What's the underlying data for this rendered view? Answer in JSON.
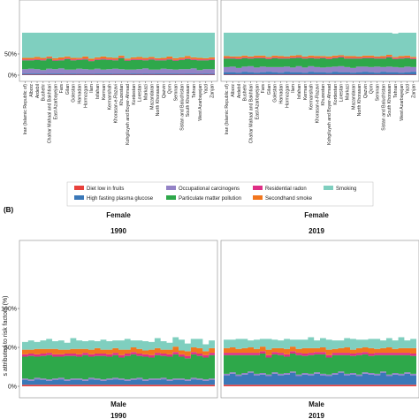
{
  "chart_data": {
    "type": "area",
    "section_label": "(B)",
    "y_label": "s attributed to risk factors (%)",
    "y_ticks_top": [
      "0%",
      "50%"
    ],
    "y_ticks_bottom": [
      "0%",
      "50%",
      "100%"
    ],
    "provinces": [
      "Iran (Islamic Republic of)",
      "Alborz",
      "Ardebil",
      "Bushehr",
      "Chahar Mahaal and Bakhtiari",
      "East Azarbayejan",
      "Fars",
      "Gilan",
      "Golestan",
      "Hamadan",
      "Hormozgan",
      "Ilam",
      "Isfahan",
      "Kerman",
      "Kermanshah",
      "Khorasan-e-Razavi",
      "Khuzestan",
      "Kohgiluyeh and Boyer-Ahmad",
      "Kordestan",
      "Lorestan",
      "Markazi",
      "Mazandaran",
      "North Khorasan",
      "Qazvin",
      "Qom",
      "Semnan",
      "Sistan and Baluchistan",
      "South Khorasan",
      "Tehran",
      "West Azarbayejan",
      "Yazd",
      "Zanjan"
    ],
    "risk_factors": [
      {
        "name": "Diet low in fruits",
        "color": "#e8413c"
      },
      {
        "name": "High fasting plasma glucose",
        "color": "#3a78b8"
      },
      {
        "name": "Occupational carcinogens",
        "color": "#9483c6"
      },
      {
        "name": "Particulate matter pollution",
        "color": "#2ea84a"
      },
      {
        "name": "Residential radon",
        "color": "#df2f86"
      },
      {
        "name": "Secondhand smoke",
        "color": "#f2761d"
      },
      {
        "name": "Smoking",
        "color": "#7fcfbf"
      }
    ],
    "panels": [
      {
        "group": "",
        "year": "",
        "x_labels": true,
        "series": {
          "Diet low in fruits": [
            1,
            1,
            1,
            1,
            1,
            1,
            1,
            1,
            1,
            1,
            1,
            1,
            1,
            1,
            1,
            1,
            1,
            1,
            1,
            1,
            1,
            1,
            1,
            1,
            1,
            1,
            1,
            1,
            1,
            1,
            1,
            1
          ],
          "High fasting plasma glucose": [
            3,
            3,
            3,
            2,
            3,
            3,
            3,
            2,
            3,
            2,
            2,
            2,
            3,
            3,
            3,
            2,
            2,
            2,
            3,
            2,
            3,
            2,
            3,
            3,
            3,
            3,
            2,
            3,
            3,
            2,
            3,
            2
          ],
          "Occupational carcinogens": [
            10,
            11,
            10,
            9,
            11,
            10,
            12,
            10,
            9,
            12,
            11,
            10,
            11,
            9,
            10,
            12,
            11,
            10,
            9,
            11,
            12,
            10,
            9,
            11,
            10,
            9,
            11,
            10,
            12,
            9,
            10,
            11
          ],
          "Particulate matter pollution": [
            21,
            20,
            22,
            23,
            24,
            20,
            19,
            25,
            22,
            21,
            23,
            20,
            21,
            24,
            22,
            20,
            26,
            21,
            23,
            22,
            19,
            24,
            22,
            20,
            23,
            21,
            22,
            24,
            20,
            23,
            21,
            22
          ],
          "Residential radon": [
            2,
            2,
            2,
            2,
            2,
            2,
            2,
            2,
            2,
            2,
            2,
            2,
            2,
            2,
            2,
            2,
            2,
            2,
            2,
            2,
            2,
            2,
            2,
            2,
            2,
            2,
            2,
            2,
            2,
            2,
            2,
            2
          ],
          "Secondhand smoke": [
            4,
            4,
            5,
            4,
            3,
            4,
            5,
            4,
            4,
            3,
            5,
            4,
            4,
            5,
            4,
            4,
            4,
            3,
            4,
            5,
            4,
            4,
            3,
            4,
            5,
            4,
            4,
            5,
            4,
            4,
            3,
            4
          ],
          "Smoking": [
            59,
            59,
            57,
            59,
            56,
            60,
            58,
            56,
            59,
            59,
            56,
            61,
            58,
            56,
            58,
            59,
            54,
            61,
            58,
            57,
            59,
            57,
            60,
            59,
            56,
            60,
            58,
            55,
            58,
            59,
            60,
            58
          ]
        }
      },
      {
        "group": "",
        "year": "",
        "x_labels": true,
        "series": {
          "Diet low in fruits": [
            1,
            1,
            1,
            1,
            1,
            1,
            1,
            1,
            1,
            1,
            1,
            1,
            1,
            1,
            1,
            1,
            1,
            1,
            1,
            1,
            1,
            1,
            1,
            1,
            1,
            1,
            1,
            1,
            1,
            1,
            1,
            1
          ],
          "High fasting plasma glucose": [
            6,
            6,
            5,
            7,
            6,
            5,
            6,
            7,
            6,
            5,
            7,
            6,
            6,
            5,
            7,
            6,
            6,
            5,
            7,
            6,
            6,
            5,
            6,
            7,
            6,
            5,
            7,
            6,
            6,
            5,
            6,
            7
          ],
          "Occupational carcinogens": [
            12,
            13,
            11,
            12,
            14,
            12,
            13,
            11,
            12,
            13,
            12,
            11,
            14,
            12,
            13,
            12,
            11,
            13,
            12,
            14,
            12,
            11,
            13,
            12,
            12,
            14,
            11,
            13,
            12,
            12,
            13,
            11
          ],
          "Particulate matter pollution": [
            20,
            19,
            21,
            20,
            18,
            22,
            20,
            19,
            21,
            20,
            19,
            22,
            20,
            21,
            19,
            20,
            22,
            19,
            20,
            21,
            20,
            22,
            19,
            20,
            21,
            19,
            20,
            22,
            19,
            21,
            20,
            19
          ],
          "Residential radon": [
            2,
            2,
            2,
            2,
            2,
            2,
            2,
            2,
            2,
            2,
            2,
            2,
            2,
            2,
            2,
            2,
            2,
            2,
            2,
            2,
            2,
            2,
            2,
            2,
            2,
            2,
            2,
            2,
            2,
            2,
            2,
            2
          ],
          "Secondhand smoke": [
            4,
            3,
            4,
            4,
            3,
            4,
            4,
            3,
            4,
            4,
            3,
            4,
            4,
            3,
            4,
            4,
            3,
            4,
            4,
            3,
            4,
            4,
            3,
            4,
            4,
            3,
            4,
            4,
            3,
            4,
            4,
            3
          ],
          "Smoking": [
            55,
            56,
            56,
            54,
            56,
            54,
            54,
            57,
            54,
            55,
            56,
            54,
            53,
            56,
            54,
            55,
            55,
            56,
            54,
            53,
            55,
            55,
            56,
            54,
            54,
            56,
            55,
            52,
            55,
            55,
            54,
            57
          ]
        }
      },
      {
        "group": "Female",
        "year": "1990",
        "x_labels": false,
        "series": {
          "Diet low in fruits": [
            2,
            2,
            2,
            2,
            2,
            2,
            2,
            2,
            2,
            2,
            2,
            2,
            2,
            2,
            2,
            2,
            2,
            2,
            2,
            2,
            2,
            2,
            2,
            2,
            2,
            2,
            2,
            2,
            2,
            2,
            2,
            2
          ],
          "High fasting plasma glucose": [
            6,
            5,
            7,
            6,
            5,
            6,
            7,
            5,
            6,
            6,
            5,
            7,
            6,
            5,
            6,
            7,
            6,
            5,
            6,
            7,
            5,
            6,
            6,
            7,
            5,
            6,
            6,
            5,
            7,
            6,
            5,
            6
          ],
          "Occupational carcinogens": [
            2,
            2,
            2,
            2,
            2,
            2,
            2,
            2,
            2,
            2,
            2,
            2,
            2,
            2,
            2,
            2,
            2,
            2,
            2,
            2,
            2,
            2,
            2,
            2,
            2,
            2,
            2,
            2,
            2,
            2,
            2,
            2
          ],
          "Particulate matter pollution": [
            28,
            30,
            27,
            29,
            31,
            28,
            27,
            30,
            29,
            28,
            31,
            27,
            29,
            30,
            28,
            29,
            27,
            30,
            31,
            28,
            29,
            27,
            30,
            28,
            29,
            31,
            28,
            27,
            30,
            29,
            28,
            30
          ],
          "Residential radon": [
            3,
            3,
            3,
            3,
            3,
            3,
            3,
            3,
            3,
            3,
            3,
            3,
            3,
            3,
            3,
            3,
            3,
            3,
            3,
            3,
            3,
            3,
            3,
            3,
            3,
            3,
            3,
            3,
            3,
            3,
            3,
            3
          ],
          "Secondhand smoke": [
            6,
            5,
            7,
            6,
            5,
            7,
            6,
            5,
            6,
            7,
            5,
            6,
            7,
            5,
            6,
            6,
            7,
            5,
            6,
            6,
            5,
            7,
            6,
            5,
            6,
            7,
            5,
            6,
            6,
            7,
            5,
            6
          ],
          "Smoking": [
            10,
            12,
            9,
            11,
            13,
            10,
            12,
            9,
            14,
            11,
            10,
            12,
            9,
            13,
            11,
            10,
            12,
            14,
            9,
            11,
            12,
            10,
            13,
            11,
            9,
            12,
            14,
            10,
            11,
            12,
            9,
            10
          ]
        }
      },
      {
        "group": "Female",
        "year": "2019",
        "x_labels": false,
        "series": {
          "Diet low in fruits": [
            2,
            2,
            2,
            2,
            2,
            2,
            2,
            2,
            2,
            2,
            2,
            2,
            2,
            2,
            2,
            2,
            2,
            2,
            2,
            2,
            2,
            2,
            2,
            2,
            2,
            2,
            2,
            2,
            2,
            2,
            2,
            2
          ],
          "High fasting plasma glucose": [
            12,
            14,
            11,
            13,
            15,
            12,
            13,
            11,
            14,
            12,
            13,
            15,
            11,
            13,
            12,
            14,
            12,
            11,
            13,
            15,
            12,
            13,
            11,
            14,
            13,
            12,
            15,
            11,
            13,
            12,
            14,
            12
          ],
          "Occupational carcinogens": [
            2,
            2,
            2,
            2,
            2,
            2,
            2,
            2,
            2,
            2,
            2,
            2,
            2,
            2,
            2,
            2,
            2,
            2,
            2,
            2,
            2,
            2,
            2,
            2,
            2,
            2,
            2,
            2,
            2,
            2,
            2,
            2
          ],
          "Particulate matter pollution": [
            24,
            22,
            25,
            23,
            21,
            24,
            25,
            22,
            23,
            24,
            21,
            23,
            25,
            22,
            24,
            23,
            25,
            22,
            23,
            21,
            24,
            22,
            25,
            23,
            22,
            24,
            21,
            25,
            23,
            24,
            22,
            23
          ],
          "Residential radon": [
            3,
            3,
            3,
            3,
            3,
            3,
            3,
            3,
            3,
            3,
            3,
            3,
            3,
            3,
            3,
            3,
            3,
            3,
            3,
            3,
            3,
            3,
            3,
            3,
            3,
            3,
            3,
            3,
            3,
            3,
            3,
            3
          ],
          "Secondhand smoke": [
            6,
            7,
            5,
            6,
            7,
            5,
            6,
            7,
            5,
            6,
            7,
            6,
            5,
            7,
            6,
            5,
            6,
            7,
            5,
            6,
            7,
            5,
            6,
            6,
            7,
            5,
            6,
            7,
            5,
            6,
            6,
            7
          ],
          "Smoking": [
            11,
            10,
            13,
            12,
            9,
            12,
            10,
            14,
            11,
            10,
            13,
            9,
            12,
            11,
            14,
            10,
            12,
            13,
            11,
            10,
            12,
            14,
            11,
            10,
            12,
            13,
            10,
            12,
            11,
            14,
            10,
            12
          ]
        }
      }
    ],
    "bottom_strip": {
      "group": "Male",
      "years": [
        "1990",
        "2019"
      ]
    }
  }
}
